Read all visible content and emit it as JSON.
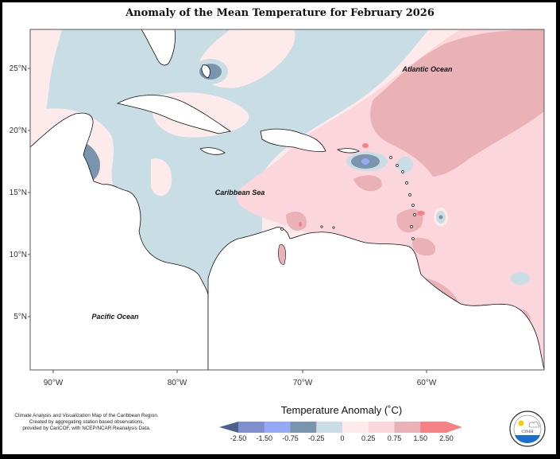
{
  "title": "Anomaly of the Mean Temperature for February 2026",
  "axes": {
    "x_ticks": [
      "90°W",
      "80°W",
      "70°W",
      "60°W"
    ],
    "y_ticks": [
      "25°N",
      "20°N",
      "15°N",
      "10°N",
      "5°N"
    ]
  },
  "labels": {
    "atlantic": "Atlantic Ocean",
    "caribbean": "Caribbean Sea",
    "pacific": "Pacific Ocean"
  },
  "legend": {
    "title": "Temperature Anomaly (˚C)",
    "ticks": [
      "-2.50",
      "-1.50",
      "-0.75",
      "-0.25",
      "0",
      "0.25",
      "0.75",
      "1.50",
      "2.50"
    ],
    "colors": [
      "#4c5f8f",
      "#7f8fcd",
      "#97a8f5",
      "#7b94ae",
      "#c8dde4",
      "#fdebeb",
      "#fbd6dc",
      "#eab1b6",
      "#f58185",
      "#f58185"
    ]
  },
  "credits": {
    "line1": "Climate Analysis and Visualization Map of the Caribbean Region.",
    "line2": "Created by aggregating station based observations,",
    "line3": "provided by CariCOF, with NCEP/NCAR Reanalysis Data."
  },
  "logo": {
    "text": "CIMH"
  }
}
